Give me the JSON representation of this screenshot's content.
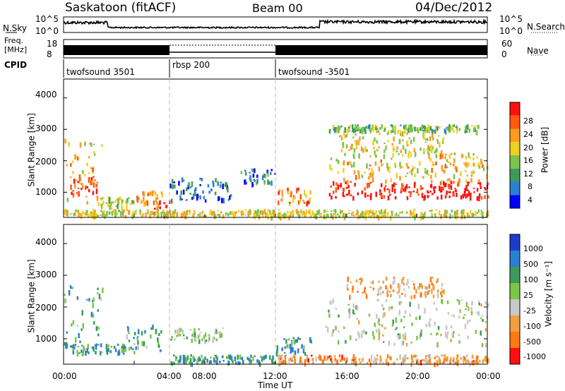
{
  "header": {
    "station": "Saskatoon (fitACF)",
    "beam": "Beam 00",
    "date": "04/Dec/2012"
  },
  "noise_panel": {
    "left_label": "N.Sky",
    "right_label": "N.Search",
    "axis_top": "10^5",
    "axis_bottom": "10^0",
    "axis_top_right": "10^5",
    "axis_bottom_right": "10^0"
  },
  "freq_panel": {
    "left_label_line1": "Freq.",
    "left_label_line2": "[MHz]",
    "left_top": "18",
    "left_bottom": "8",
    "right_label": "Nave",
    "right_top": "60",
    "right_bottom": "0"
  },
  "cpid_panel": {
    "label": "CPID",
    "modes": [
      {
        "name": "twofsound 3501",
        "start_h": 0,
        "end_h": 6
      },
      {
        "name": "rbsp 200",
        "start_h": 6,
        "end_h": 12
      },
      {
        "name": "twofsound -3501",
        "start_h": 12,
        "end_h": 24
      }
    ]
  },
  "colors": {
    "power_scale": [
      "#0000ff",
      "#2a7fd4",
      "#3c9a5a",
      "#7cc44a",
      "#f0d020",
      "#ff9a20",
      "#ff5a10",
      "#ff1010"
    ],
    "velocity_scale": [
      "#1e3cc8",
      "#2a7fd4",
      "#3c9a5a",
      "#7cc44a",
      "#c8c8c8",
      "#f0a040",
      "#ff7a10",
      "#ff1010"
    ],
    "ground_scatter": "#c8c8c8"
  },
  "chart_data": [
    {
      "type": "heatmap",
      "title": "Power",
      "xlabel": "",
      "ylabel": "Slant Range [km]",
      "x_range_h": [
        0,
        24
      ],
      "ylim": [
        200,
        4600
      ],
      "y_ticks": [
        1000,
        2000,
        3000,
        4000
      ],
      "colorbar": {
        "label": "Power [dB]",
        "ticks": [
          "4",
          "8",
          "12",
          "16",
          "20",
          "24",
          "28"
        ],
        "range": [
          0,
          32
        ]
      },
      "regions": [
        {
          "t": [
            0.0,
            2.2
          ],
          "r": [
            600,
            2700
          ],
          "level": 0.62
        },
        {
          "t": [
            0.3,
            2.0
          ],
          "r": [
            900,
            1500
          ],
          "level": 0.9
        },
        {
          "t": [
            2.0,
            4.0
          ],
          "r": [
            500,
            800
          ],
          "level": 0.45
        },
        {
          "t": [
            4.0,
            5.6
          ],
          "r": [
            600,
            1000
          ],
          "level": 0.7
        },
        {
          "t": [
            5.0,
            6.0
          ],
          "r": [
            250,
            700
          ],
          "level": 0.85
        },
        {
          "t": [
            6.0,
            9.5
          ],
          "r": [
            700,
            1400
          ],
          "level": 0.2
        },
        {
          "t": [
            10.0,
            12.0
          ],
          "r": [
            1200,
            1700
          ],
          "level": 0.25
        },
        {
          "t": [
            12.1,
            14.0
          ],
          "r": [
            600,
            1100
          ],
          "level": 0.75
        },
        {
          "t": [
            15.0,
            24.0
          ],
          "r": [
            800,
            1300
          ],
          "level": 0.95
        },
        {
          "t": [
            15.0,
            24.0
          ],
          "r": [
            1300,
            2200
          ],
          "level": 0.6
        },
        {
          "t": [
            15.5,
            21.5
          ],
          "r": [
            2200,
            2900
          ],
          "level": 0.55
        },
        {
          "t": [
            15.0,
            23.5
          ],
          "r": [
            2900,
            3100
          ],
          "level": 0.4
        },
        {
          "t": [
            0.0,
            24.0
          ],
          "r": [
            200,
            400
          ],
          "level": 0.55
        }
      ]
    },
    {
      "type": "heatmap",
      "title": "Velocity",
      "xlabel": "Time UT",
      "ylabel": "Slant Range [km]",
      "x_range_h": [
        0,
        24
      ],
      "x_ticks": [
        "00:00",
        "04:00",
        "08:00",
        "12:00",
        "16:00",
        "20:00",
        "00:00"
      ],
      "ylim": [
        200,
        4600
      ],
      "y_ticks": [
        1000,
        2000,
        3000,
        4000
      ],
      "colorbar": {
        "label": "Velocity [m s⁻¹]",
        "ticks": [
          "1000",
          "500",
          "100",
          "25",
          "-25",
          "-100",
          "-500",
          "-1000"
        ],
        "range": [
          -1000,
          1000
        ]
      },
      "regions": [
        {
          "t": [
            0.0,
            2.2
          ],
          "r": [
            700,
            2700
          ],
          "level": 0.35
        },
        {
          "t": [
            0.0,
            3.5
          ],
          "r": [
            500,
            800
          ],
          "level": 0.3
        },
        {
          "t": [
            3.5,
            5.5
          ],
          "r": [
            500,
            1400
          ],
          "level": 0.35
        },
        {
          "t": [
            6.0,
            9.0
          ],
          "r": [
            900,
            1300
          ],
          "level": 0.5
        },
        {
          "t": [
            6.0,
            12.0
          ],
          "r": [
            200,
            450
          ],
          "level": 0.3
        },
        {
          "t": [
            12.0,
            14.0
          ],
          "r": [
            500,
            1000
          ],
          "level": 0.3
        },
        {
          "t": [
            14.8,
            24.0
          ],
          "r": [
            800,
            2200
          ],
          "level": 0.5
        },
        {
          "t": [
            16.0,
            21.5
          ],
          "r": [
            2300,
            2900
          ],
          "level": 0.7
        },
        {
          "t": [
            12.0,
            24.0
          ],
          "r": [
            200,
            450
          ],
          "level": 0.72
        }
      ]
    }
  ],
  "time_axis": {
    "label": "Time UT",
    "ticks": [
      "00:00",
      "04:00",
      "08:00",
      "12:00",
      "16:00",
      "20:00",
      "00:00"
    ]
  }
}
